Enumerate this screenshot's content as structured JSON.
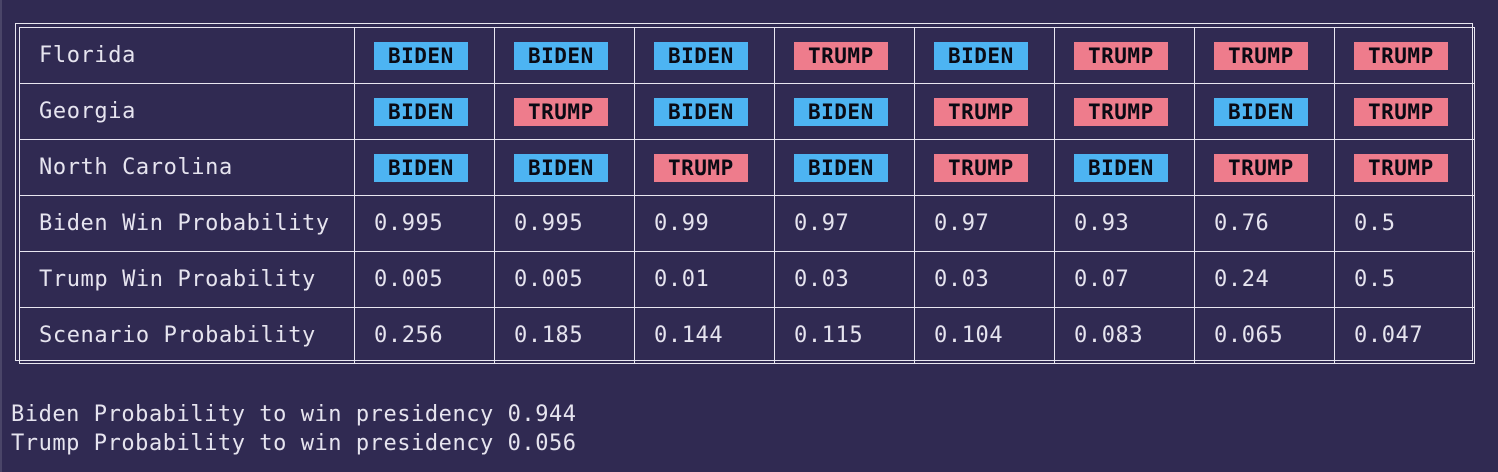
{
  "colors": {
    "background": "#302a52",
    "border": "#e8e6f0",
    "text": "#e6e4ef",
    "biden": "#4db4f2",
    "trump": "#ee7c8c"
  },
  "table": {
    "state_rows": [
      {
        "label": "Florida",
        "values": [
          "BIDEN",
          "BIDEN",
          "BIDEN",
          "TRUMP",
          "BIDEN",
          "TRUMP",
          "TRUMP",
          "TRUMP"
        ]
      },
      {
        "label": "Georgia",
        "values": [
          "BIDEN",
          "TRUMP",
          "BIDEN",
          "BIDEN",
          "TRUMP",
          "TRUMP",
          "BIDEN",
          "TRUMP"
        ]
      },
      {
        "label": "North Carolina",
        "values": [
          "BIDEN",
          "BIDEN",
          "TRUMP",
          "BIDEN",
          "TRUMP",
          "BIDEN",
          "TRUMP",
          "TRUMP"
        ]
      }
    ],
    "prob_rows": [
      {
        "label": "Biden Win Probability",
        "values": [
          "0.995",
          "0.995",
          "0.99",
          "0.97",
          "0.97",
          "0.93",
          "0.76",
          "0.5"
        ]
      },
      {
        "label": "Trump Win Proability",
        "values": [
          "0.005",
          "0.005",
          "0.01",
          "0.03",
          "0.03",
          "0.07",
          "0.24",
          "0.5"
        ]
      },
      {
        "label": "Scenario Probability",
        "values": [
          "0.256",
          "0.185",
          "0.144",
          "0.115",
          "0.104",
          "0.083",
          "0.065",
          "0.047"
        ]
      }
    ]
  },
  "summary": {
    "biden_line": "Biden Probability to win presidency 0.944",
    "trump_line": "Trump Probability to win presidency 0.056"
  }
}
